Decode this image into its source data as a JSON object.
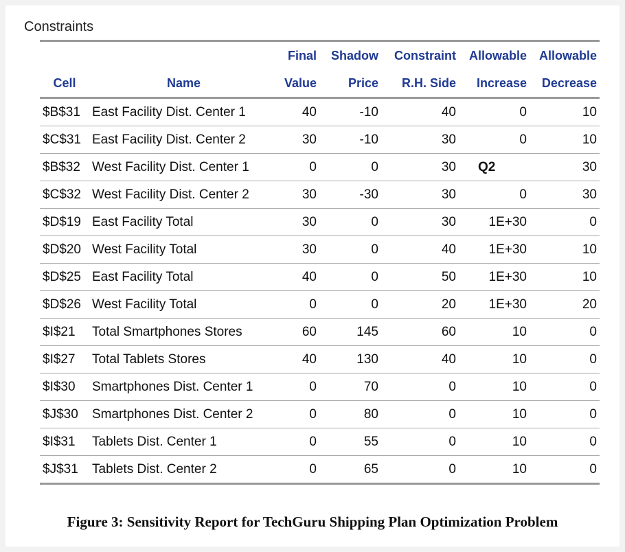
{
  "title": "Constraints",
  "table": {
    "header_top": [
      "Final",
      "Shadow",
      "Constraint",
      "Allowable",
      "Allowable"
    ],
    "header_bottom": [
      "Cell",
      "Name",
      "Value",
      "Price",
      "R.H. Side",
      "Increase",
      "Decrease"
    ],
    "rows": [
      [
        "$B$31",
        "East Facility Dist. Center 1",
        40,
        -10,
        40,
        0,
        10
      ],
      [
        "$C$31",
        "East Facility Dist. Center 2",
        30,
        -10,
        30,
        0,
        10
      ],
      [
        "$B$32",
        "West Facility Dist. Center 1",
        0,
        0,
        30,
        "Q2",
        30
      ],
      [
        "$C$32",
        "West Facility Dist. Center 2",
        30,
        -30,
        30,
        0,
        30
      ],
      [
        "$D$19",
        "East Facility Total",
        30,
        0,
        30,
        "1E+30",
        0
      ],
      [
        "$D$20",
        "West Facility Total",
        30,
        0,
        40,
        "1E+30",
        10
      ],
      [
        "$D$25",
        "East Facility Total",
        40,
        0,
        50,
        "1E+30",
        10
      ],
      [
        "$D$26",
        "West Facility Total",
        0,
        0,
        20,
        "1E+30",
        20
      ],
      [
        "$I$21",
        "Total Smartphones Stores",
        60,
        145,
        60,
        10,
        0
      ],
      [
        "$I$27",
        "Total Tablets Stores",
        40,
        130,
        40,
        10,
        0
      ],
      [
        "$I$30",
        "Smartphones Dist. Center 1",
        0,
        70,
        0,
        10,
        0
      ],
      [
        "$J$30",
        "Smartphones Dist. Center 2",
        0,
        80,
        0,
        10,
        0
      ],
      [
        "$I$31",
        "Tablets Dist. Center 1",
        0,
        55,
        0,
        10,
        0
      ],
      [
        "$J$31",
        "Tablets Dist. Center 2",
        0,
        65,
        0,
        10,
        0
      ]
    ]
  },
  "caption": "Figure 3: Sensitivity Report for TechGuru Shipping Plan Optimization Problem"
}
